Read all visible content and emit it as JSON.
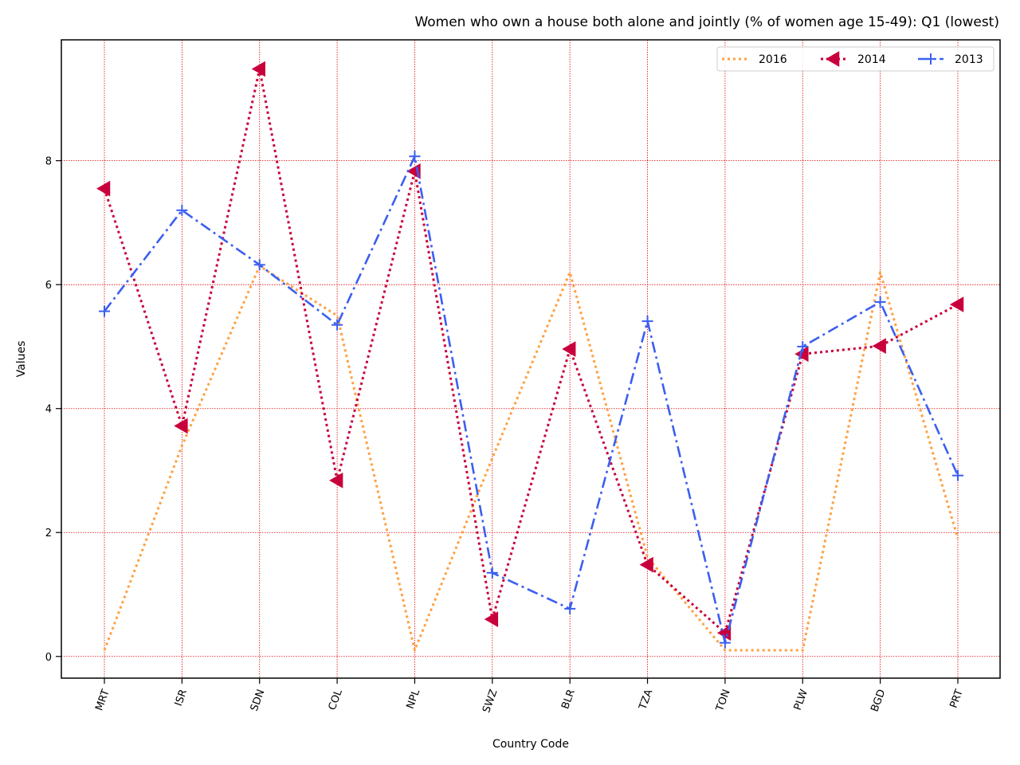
{
  "chart_data": {
    "type": "line",
    "title": "Women who own a house both alone and jointly (% of women age 15-49): Q1 (lowest)",
    "xlabel": "Country Code",
    "ylabel": "Values",
    "categories": [
      "MRT",
      "ISR",
      "SDN",
      "COL",
      "NPL",
      "SWZ",
      "BLR",
      "TZA",
      "TON",
      "PLW",
      "BGD",
      "PRT"
    ],
    "ylim": [
      -0.35,
      9.95
    ],
    "yticks": [
      "0",
      "2",
      "4",
      "6",
      "8"
    ],
    "grid": true,
    "legend_position": "top-right",
    "series": [
      {
        "name": "2016",
        "color": "#ffa040",
        "style": "dotted",
        "marker": "none",
        "values": [
          0.1,
          3.4,
          6.3,
          5.5,
          0.1,
          3.2,
          6.2,
          1.6,
          0.1,
          0.1,
          6.2,
          1.9
        ]
      },
      {
        "name": "2014",
        "color": "#c8003c",
        "style": "dotted",
        "marker": "triangle-left",
        "values": [
          7.55,
          3.72,
          9.48,
          2.84,
          7.83,
          0.6,
          4.96,
          1.48,
          0.38,
          4.88,
          5.01,
          5.68
        ]
      },
      {
        "name": "2013",
        "color": "#3c5ff0",
        "style": "dashdot",
        "marker": "plus",
        "values": [
          5.57,
          7.2,
          6.32,
          5.35,
          8.07,
          1.35,
          0.77,
          5.41,
          0.22,
          5.0,
          5.72,
          2.92
        ]
      }
    ]
  }
}
